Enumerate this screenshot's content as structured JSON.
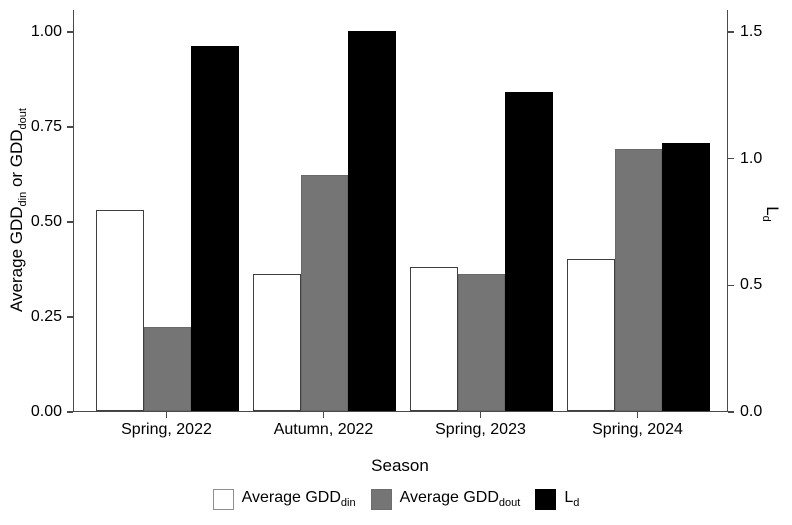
{
  "colors": {
    "axis": "#4a4a4a",
    "text": "#000000",
    "white_bar_fill": "#ffffff",
    "white_bar_stroke": "#3f3f3f",
    "gray_bar_fill": "#757575",
    "gray_bar_stroke": "#696969",
    "black_bar_fill": "#000000",
    "legend_white_swatch_border": "#8e8e8e"
  },
  "chart_data": {
    "type": "bar",
    "title": "",
    "xlabel": "Season",
    "categories": [
      "Spring, 2022",
      "Autumn, 2022",
      "Spring, 2023",
      "Spring, 2024"
    ],
    "series": [
      {
        "name": "Average GDD_din",
        "axis": "left",
        "fill": "#ffffff",
        "stroke": "#3f3f3f",
        "stroke_width": 1.5,
        "values": [
          0.53,
          0.36,
          0.38,
          0.4
        ]
      },
      {
        "name": "Average GDD_dout",
        "axis": "left",
        "fill": "#757575",
        "stroke": "#696969",
        "stroke_width": 1,
        "values": [
          0.22,
          0.62,
          0.36,
          0.69
        ]
      },
      {
        "name": "L_d",
        "axis": "right",
        "fill": "#000000",
        "stroke": "#000000",
        "stroke_width": 1,
        "values": [
          1.44,
          1.5,
          1.26,
          1.06
        ]
      }
    ],
    "y_left": {
      "title_segments": [
        {
          "text": "Average GDD"
        },
        {
          "text": "din",
          "sub": true
        },
        {
          "text": " or GDD"
        },
        {
          "text": "dout",
          "sub": true
        }
      ],
      "lim": [
        0,
        1.0
      ],
      "ticks": [
        {
          "label": "0.00",
          "value": 0.0
        },
        {
          "label": "0.25",
          "value": 0.25
        },
        {
          "label": "0.50",
          "value": 0.5
        },
        {
          "label": "0.75",
          "value": 0.75
        },
        {
          "label": "1.00",
          "value": 1.0
        }
      ]
    },
    "y_right": {
      "title_segments": [
        {
          "text": "L"
        },
        {
          "text": "d",
          "sub": true
        }
      ],
      "lim": [
        0,
        1.5
      ],
      "ticks": [
        {
          "label": "0.0",
          "value": 0.0
        },
        {
          "label": "0.5",
          "value": 0.5
        },
        {
          "label": "1.0",
          "value": 1.0
        },
        {
          "label": "1.5",
          "value": 1.5
        }
      ]
    },
    "grid": false,
    "legend_position": "bottom"
  },
  "legend": {
    "items": [
      {
        "name": "avg-gdd-din",
        "fill": "#ffffff",
        "border": "#8e8e8e",
        "segments": [
          {
            "text": "Average GDD"
          },
          {
            "text": "din",
            "sub": true
          }
        ]
      },
      {
        "name": "avg-gdd-dout",
        "fill": "#757575",
        "border": "#6d6d6d",
        "segments": [
          {
            "text": "Average GDD"
          },
          {
            "text": "dout",
            "sub": true
          }
        ]
      },
      {
        "name": "ld",
        "fill": "#000000",
        "border": "#000000",
        "segments": [
          {
            "text": "L"
          },
          {
            "text": "d",
            "sub": true
          }
        ]
      }
    ]
  }
}
